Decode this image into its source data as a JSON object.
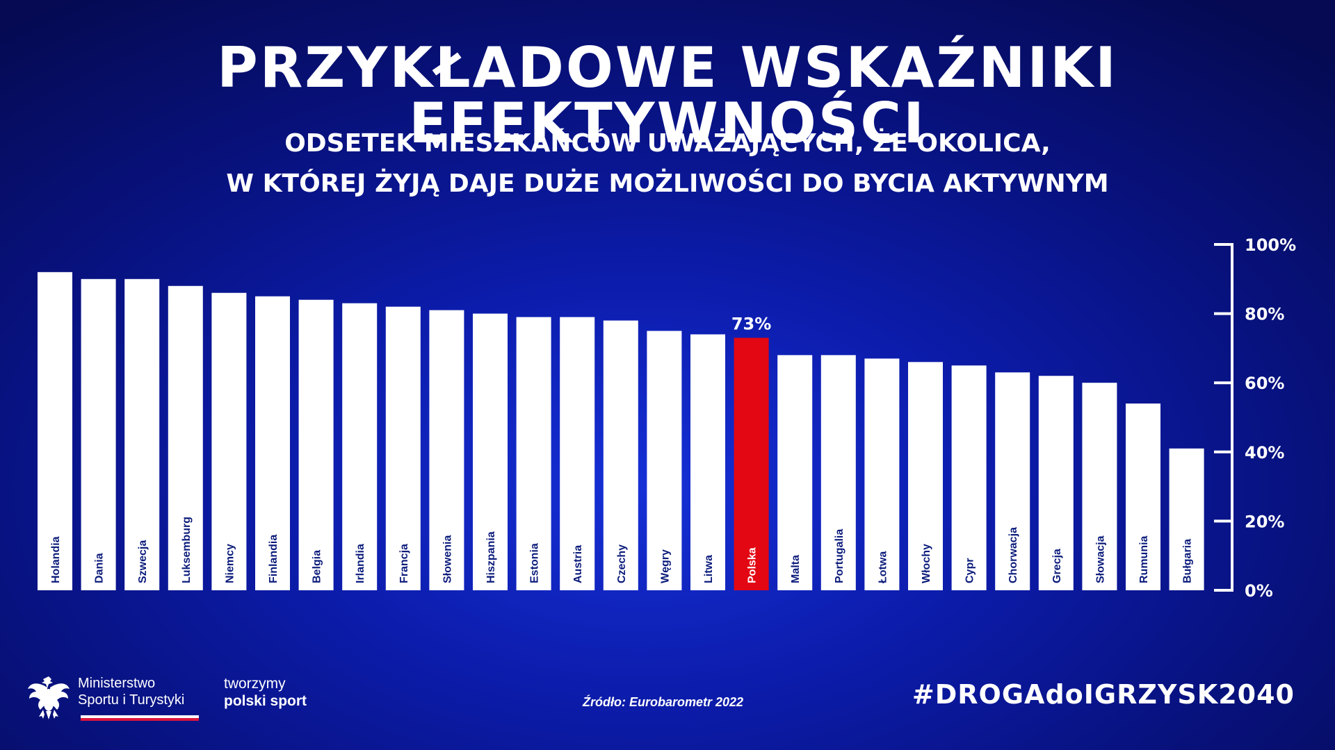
{
  "title": "PRZYKŁADOWE WSKAŹNIKI EFEKTYWNOŚCI",
  "subtitle_line1": "ODSETEK MIESZKAŃCÓW UWAŻAJĄCYCH, ŻE OKOLICA,",
  "subtitle_line2": "W KTÓREJ ŻYJĄ DAJE DUŻE MOŻLIWOŚCI DO BYCIA AKTYWNYM",
  "chart_data": {
    "type": "bar",
    "categories": [
      "Holandia",
      "Dania",
      "Szwecja",
      "Luksemburg",
      "Niemcy",
      "Finlandia",
      "Belgia",
      "Irlandia",
      "Francja",
      "Słowenia",
      "Hiszpania",
      "Estonia",
      "Austria",
      "Czechy",
      "Węgry",
      "Litwa",
      "Polska",
      "Malta",
      "Portugalia",
      "Łotwa",
      "Włochy",
      "Cypr",
      "Chorwacja",
      "Grecja",
      "Słowacja",
      "Rumunia",
      "Bułgaria"
    ],
    "values": [
      92,
      90,
      90,
      88,
      86,
      85,
      84,
      83,
      82,
      81,
      80,
      79,
      79,
      78,
      75,
      74,
      73,
      68,
      68,
      67,
      66,
      65,
      63,
      62,
      60,
      54,
      41
    ],
    "highlight": {
      "category": "Polska",
      "label": "73%"
    },
    "yticks": [
      "0%",
      "20%",
      "40%",
      "60%",
      "80%",
      "100%"
    ],
    "ylim": [
      0,
      100
    ],
    "y_axis_side": "right",
    "bar_color": "#ffffff",
    "highlight_color": "#e30613",
    "title": "",
    "xlabel": "",
    "ylabel": ""
  },
  "source": "Źródło: Eurobarometr 2022",
  "ministry": {
    "line1": "Ministerstwo",
    "line2": "Sportu i Turystyki"
  },
  "slogan": {
    "line1": "tworzymy",
    "line2": "polski sport"
  },
  "hashtag": "#DROGAdoIGRZYSK2040",
  "icons": {
    "emblem": "polish-eagle-emblem-icon"
  }
}
